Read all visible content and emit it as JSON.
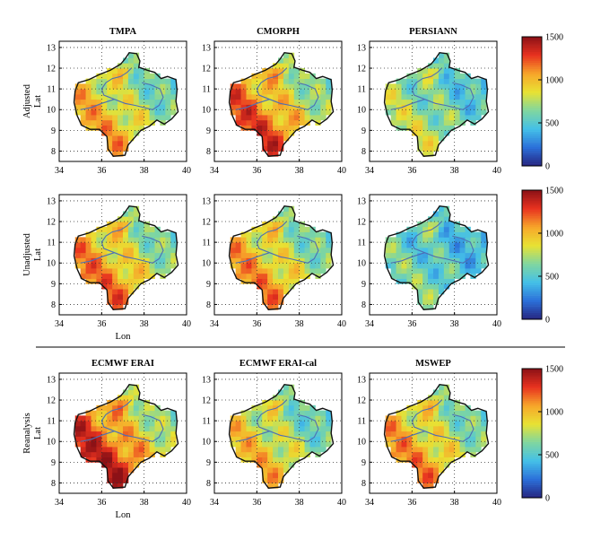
{
  "chart_data": {
    "type": "heatmap",
    "rows": [
      {
        "label": "Adjusted",
        "ylabel": "Lat",
        "panels": [
          "TMPA",
          "CMORPH",
          "PERSIANN"
        ],
        "pattern": [
          0.7,
          0.9,
          0.45
        ]
      },
      {
        "label": "Unadjusted",
        "ylabel": "Lat",
        "panels": [
          "",
          "",
          ""
        ],
        "pattern": [
          0.8,
          0.75,
          0.3
        ]
      },
      {
        "label": "Reanalysis",
        "ylabel": "Lat",
        "panels": [
          "ECMWF ERAI",
          "ECMWF ERAI-cal",
          "MSWEP"
        ],
        "pattern": [
          1.0,
          0.65,
          0.75
        ]
      }
    ],
    "xlabel": "Lon",
    "xlim": [
      34,
      40
    ],
    "ylim": [
      7.5,
      13.3
    ],
    "xticks": [
      "34",
      "36",
      "38",
      "40"
    ],
    "yticks": [
      "8",
      "9",
      "10",
      "11",
      "12",
      "13"
    ],
    "colorbar": {
      "ticks": [
        "0",
        "500",
        "1000",
        "1500"
      ],
      "range": [
        0,
        1500
      ]
    },
    "grid": true
  },
  "colors": {
    "colormap": [
      "#26247f",
      "#2b6fd9",
      "#44c0e8",
      "#7fd6a0",
      "#e8e233",
      "#f7a62a",
      "#e8321f",
      "#8c1116"
    ],
    "boundary": "#111111",
    "river": "#4d6fb5",
    "grid": "#333333",
    "outside": "#ffffff"
  }
}
